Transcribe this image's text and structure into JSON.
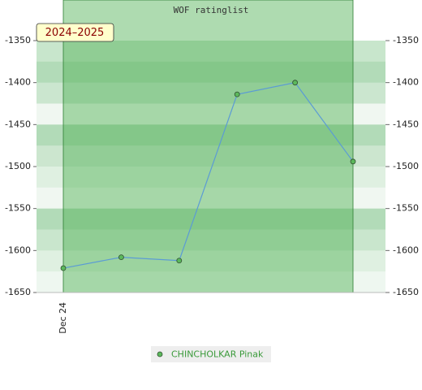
{
  "chart_data": {
    "type": "line",
    "title": "WOF ratinglist",
    "categories": [
      "Dec 24",
      null,
      null,
      null,
      null,
      null
    ],
    "series": [
      {
        "name": "CHINCHOLKAR Pinak",
        "color": "#5b9bd5",
        "marker_color": "#5cb85c",
        "values": [
          -1621,
          -1608,
          -1612,
          -1414,
          -1400,
          -1494
        ]
      }
    ],
    "ylim": [
      -1650,
      -1350
    ],
    "yticks": [
      -1650,
      -1600,
      -1550,
      -1500,
      -1450,
      -1400,
      -1350
    ],
    "period_label": "2024–2025",
    "period_color": "#4caf50"
  }
}
